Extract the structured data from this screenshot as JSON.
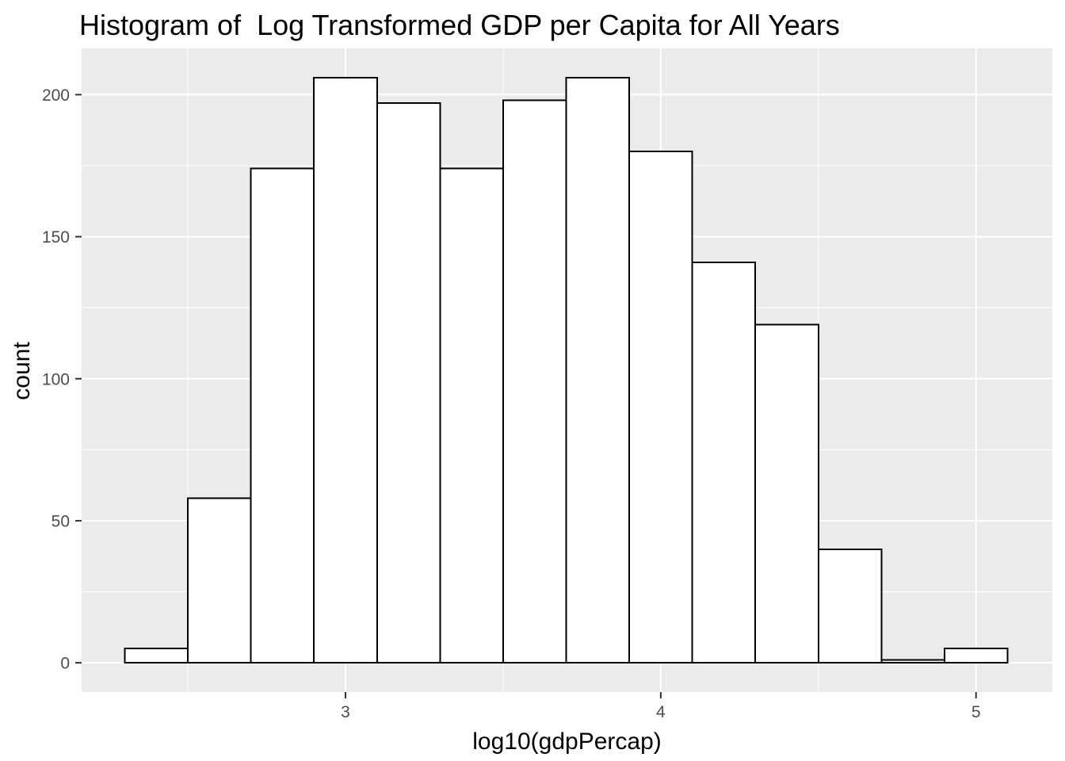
{
  "header": {
    "title": "Histogram of  Log Transformed GDP per Capita for All Years"
  },
  "colors": {
    "panel_background": "#EBEBEB",
    "grid_major": "#FFFFFF",
    "grid_minor": "#FFFFFF",
    "bar_fill": "#FFFFFF",
    "bar_stroke": "#000000",
    "tick_label": "#4D4D4D",
    "tick_mark": "#333333",
    "text": "#000000",
    "outer_background": "#FFFFFF"
  },
  "chart_data": {
    "type": "bar",
    "subtype": "histogram",
    "title": "Histogram of  Log Transformed GDP per Capita for All Years",
    "xlabel": "log10(gdpPercap)",
    "ylabel": "count",
    "bin_edges": [
      2.3,
      2.5,
      2.7,
      2.9,
      3.1,
      3.3,
      3.5,
      3.7,
      3.9,
      4.1,
      4.3,
      4.5,
      4.7,
      4.9,
      5.1
    ],
    "counts": [
      5,
      58,
      174,
      206,
      197,
      174,
      198,
      206,
      180,
      141,
      119,
      40,
      1,
      5
    ],
    "total_count": 1704,
    "x_ticks": [
      3,
      4,
      5
    ],
    "y_ticks": [
      0,
      50,
      100,
      150,
      200
    ],
    "x_minor_gridlines": [
      2.5,
      3.5,
      4.5
    ],
    "y_minor_gridlines": [
      25,
      75,
      125,
      175
    ],
    "xlim": [
      2.163,
      5.242
    ],
    "ylim": [
      -10.3,
      216.3
    ],
    "grid": true,
    "legend_position": "none"
  }
}
